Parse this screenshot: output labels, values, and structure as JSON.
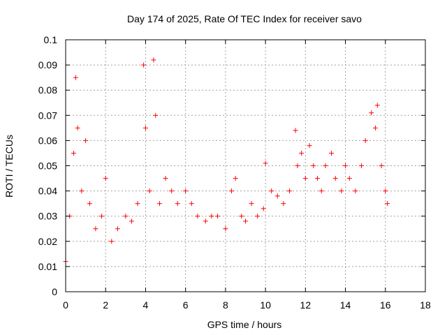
{
  "chart_data": {
    "type": "scatter",
    "title": "Day 174 of 2025, Rate Of TEC Index for receiver savo",
    "xlabel": "GPS time / hours",
    "ylabel": "ROTI / TECUs",
    "xlim": [
      0,
      18
    ],
    "ylim": [
      0,
      0.1
    ],
    "xticks": [
      0,
      2,
      4,
      6,
      8,
      10,
      12,
      14,
      16,
      18
    ],
    "xtick_labels": [
      "0",
      "2",
      "4",
      "6",
      "8",
      "10",
      "12",
      "14",
      "16",
      "18"
    ],
    "yticks": [
      0,
      0.01,
      0.02,
      0.03,
      0.04,
      0.05,
      0.06,
      0.07,
      0.08,
      0.09,
      0.1
    ],
    "ytick_labels": [
      "0",
      "0.01",
      "0.02",
      "0.03",
      "0.04",
      "0.05",
      "0.06",
      "0.07",
      "0.08",
      "0.09",
      "0.1"
    ],
    "grid": true,
    "marker": "plus",
    "color": "#ff0000",
    "series": [
      {
        "x": [
          0.0,
          0.2,
          0.4,
          0.5,
          0.6,
          0.8,
          1.0,
          1.2,
          1.5,
          1.8,
          2.0,
          2.3,
          2.6,
          3.0,
          3.3,
          3.6,
          3.9,
          4.0,
          4.2,
          4.4,
          4.5,
          4.7,
          5.0,
          5.3,
          5.6,
          6.0,
          6.3,
          6.6,
          7.0,
          7.3,
          7.6,
          8.0,
          8.3,
          8.5,
          8.8,
          9.0,
          9.3,
          9.6,
          9.9,
          10.0,
          10.3,
          10.6,
          10.9,
          11.2,
          11.5,
          11.6,
          11.8,
          12.0,
          12.2,
          12.4,
          12.6,
          12.8,
          13.0,
          13.3,
          13.5,
          13.8,
          14.0,
          14.2,
          14.5,
          14.8,
          15.0,
          15.3,
          15.5,
          15.6,
          15.8,
          16.0,
          16.1
        ],
        "y": [
          0.012,
          0.03,
          0.055,
          0.085,
          0.065,
          0.04,
          0.06,
          0.035,
          0.025,
          0.03,
          0.045,
          0.02,
          0.025,
          0.03,
          0.028,
          0.035,
          0.09,
          0.065,
          0.04,
          0.092,
          0.07,
          0.035,
          0.045,
          0.04,
          0.035,
          0.04,
          0.035,
          0.03,
          0.028,
          0.03,
          0.03,
          0.025,
          0.04,
          0.045,
          0.03,
          0.028,
          0.035,
          0.03,
          0.033,
          0.051,
          0.04,
          0.038,
          0.035,
          0.04,
          0.064,
          0.05,
          0.055,
          0.045,
          0.058,
          0.05,
          0.045,
          0.04,
          0.05,
          0.055,
          0.045,
          0.04,
          0.05,
          0.045,
          0.04,
          0.05,
          0.06,
          0.071,
          0.065,
          0.074,
          0.05,
          0.04,
          0.035
        ]
      }
    ]
  }
}
